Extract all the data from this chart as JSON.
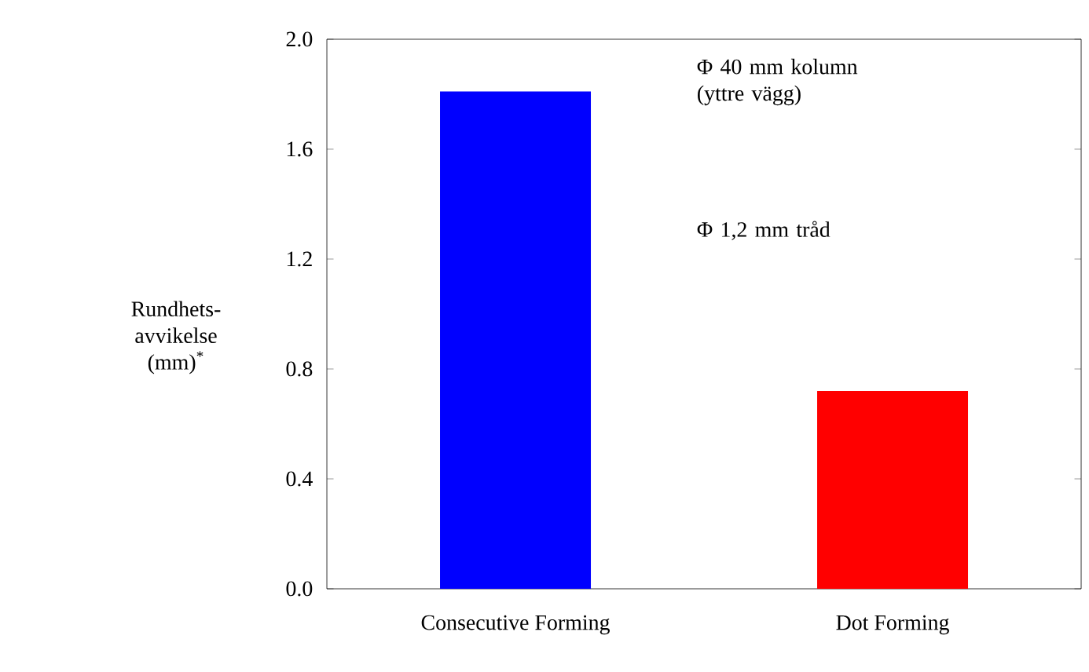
{
  "chart_data": {
    "type": "bar",
    "ylabel": "Rundhets-avvikelse (mm)$^{*}$",
    "categories": [
      "Consecutive Forming",
      "Dot Forming"
    ],
    "values": [
      1.81,
      0.72
    ],
    "colors": [
      "#0000ff",
      "#ff0000"
    ],
    "ylim": [
      0,
      2.0
    ],
    "yticks": [
      {
        "value": 0,
        "label": "0.0"
      },
      {
        "value": 0.4,
        "label": "0.4"
      },
      {
        "value": 0.8,
        "label": "0.8"
      },
      {
        "value": 1.2,
        "label": "1.2"
      },
      {
        "value": 1.6,
        "label": "1.6"
      },
      {
        "value": 2.0,
        "label": "2.0"
      }
    ],
    "annotations": [
      "Φ 40 mm kolumn (yttre vägg)",
      "Φ 1,2 mm tråd"
    ],
    "grid": false
  }
}
